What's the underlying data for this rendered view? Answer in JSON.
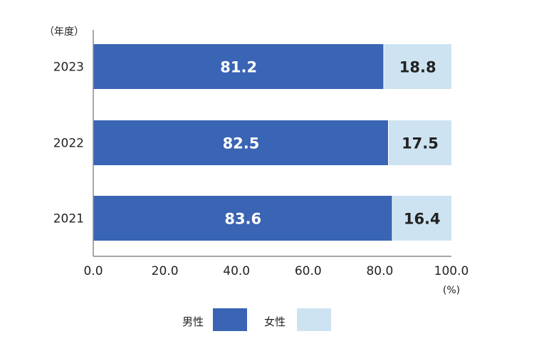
{
  "chart_data": {
    "type": "bar",
    "orientation": "horizontal",
    "stacked": true,
    "categories": [
      "2023",
      "2022",
      "2021"
    ],
    "series": [
      {
        "name": "男性",
        "values": [
          81.2,
          82.5,
          83.6
        ],
        "color": "#3a64b4"
      },
      {
        "name": "女性",
        "values": [
          18.8,
          17.5,
          16.4
        ],
        "color": "#cde3f2"
      }
    ],
    "xlim": [
      0,
      100
    ],
    "xticks": [
      "0.0",
      "20.0",
      "40.0",
      "60.0",
      "80.0",
      "100.0"
    ],
    "x_unit_label": "(%)",
    "y_unit_label": "（年度）",
    "legend_position": "bottom-center",
    "grid": false
  }
}
